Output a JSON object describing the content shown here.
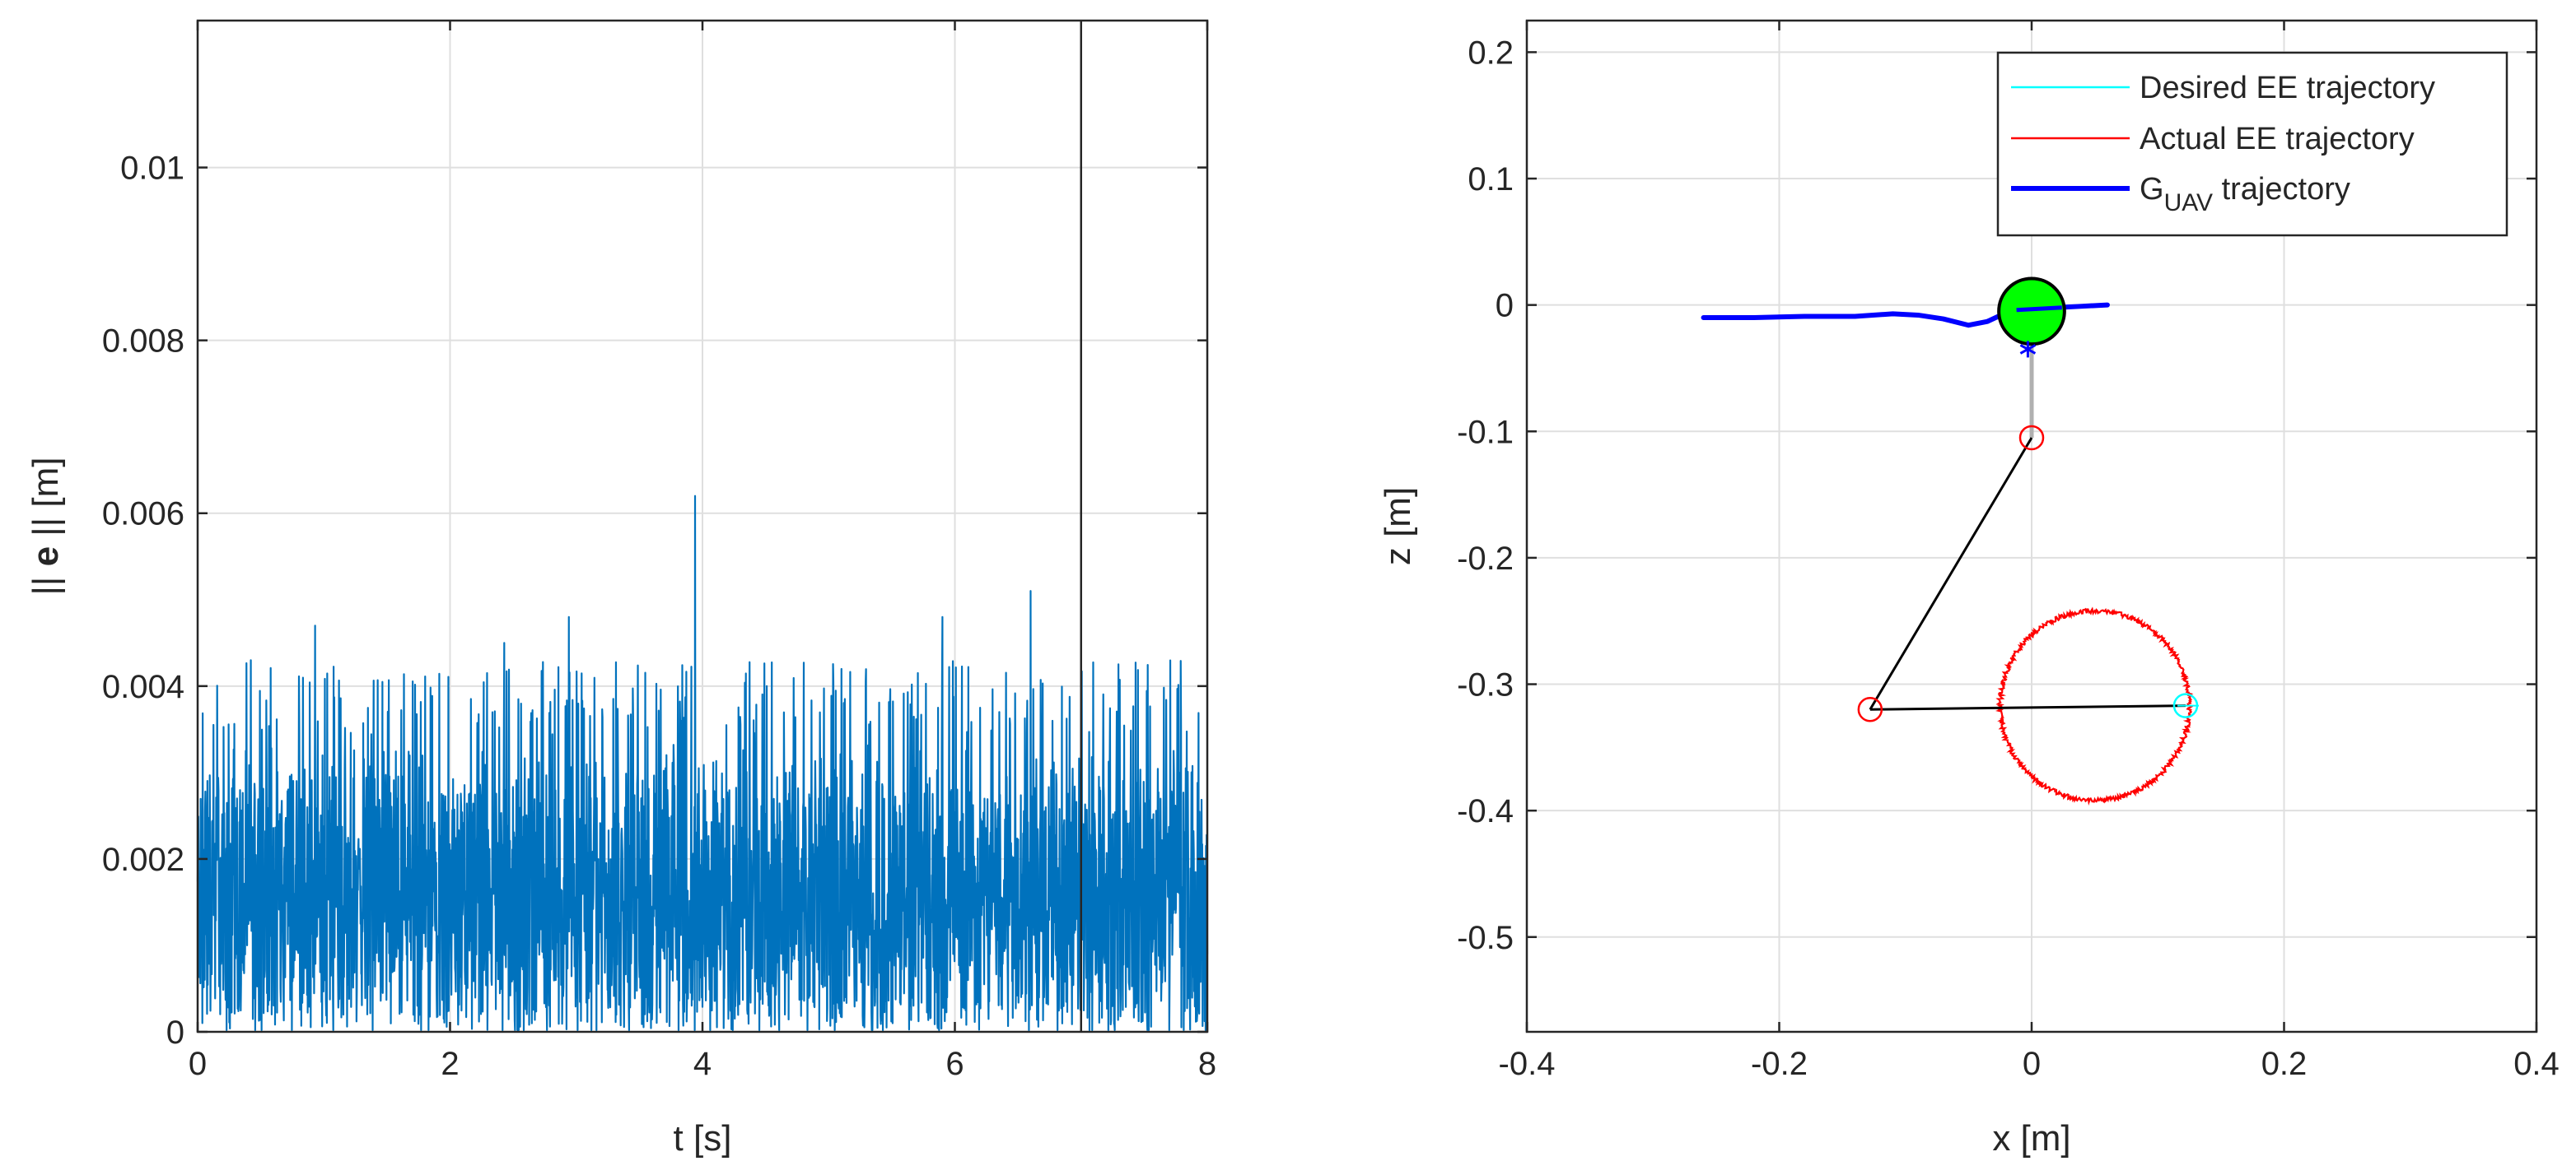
{
  "chart_data": [
    {
      "type": "line",
      "xlabel": "t [s]",
      "ylabel_parts": [
        "|| ",
        "e",
        " || [m]"
      ],
      "xlim": [
        0,
        8
      ],
      "ylim": [
        0,
        0.0117
      ],
      "xticks": [
        "0",
        "2",
        "4",
        "6",
        "8"
      ],
      "yticks": [
        "0",
        "0.002",
        "0.004",
        "0.006",
        "0.008",
        "0.01"
      ],
      "grid": true,
      "series": [
        {
          "color": "#0072BD",
          "duration_s": 8,
          "mean_error_m": 0.0016,
          "typical_max_error_m": 0.0043,
          "spikes": [
            {
              "t": 0.42,
              "e": 0.0043
            },
            {
              "t": 0.93,
              "e": 0.0047
            },
            {
              "t": 2.43,
              "e": 0.0045
            },
            {
              "t": 2.94,
              "e": 0.0048
            },
            {
              "t": 3.94,
              "e": 0.0062
            },
            {
              "t": 5.9,
              "e": 0.0048
            },
            {
              "t": 6.6,
              "e": 0.0051
            }
          ]
        }
      ],
      "vertical_line": {
        "x": 7.0,
        "color": "#262626"
      }
    },
    {
      "type": "line",
      "xlabel": "x [m]",
      "ylabel": "z [m]",
      "xlim": [
        -0.4,
        0.4
      ],
      "ylim": [
        -0.575,
        0.225
      ],
      "xticks": [
        "-0.4",
        "-0.2",
        "0",
        "0.2",
        "0.4"
      ],
      "yticks": [
        "0.2",
        "0.1",
        "0",
        "-0.1",
        "-0.2",
        "-0.3",
        "-0.4",
        "-0.5"
      ],
      "grid": true,
      "legend": {
        "position": "top-right",
        "entries": [
          {
            "label": "Desired EE trajectory",
            "color": "#00FFFF"
          },
          {
            "label": "Actual EE trajectory",
            "color": "#FF0000"
          },
          {
            "label_main": "G",
            "label_sub": "UAV",
            "label_tail": " trajectory",
            "color": "#0000FF"
          }
        ]
      },
      "series": [
        {
          "name": "Desired EE trajectory",
          "color": "#00FFFF",
          "shape": "circle",
          "center": [
            0.048,
            -0.317
          ],
          "radius": 0.075
        },
        {
          "name": "Actual EE trajectory",
          "color": "#FF0000",
          "shape": "circle",
          "center": [
            0.05,
            -0.317
          ],
          "radius": 0.075
        },
        {
          "name": "GUAV trajectory",
          "color": "#0000FF",
          "points": [
            [
              -0.26,
              -0.01
            ],
            [
              -0.22,
              -0.01
            ],
            [
              -0.18,
              -0.009
            ],
            [
              -0.14,
              -0.009
            ],
            [
              -0.11,
              -0.007
            ],
            [
              -0.09,
              -0.008
            ],
            [
              -0.07,
              -0.011
            ],
            [
              -0.05,
              -0.016
            ],
            [
              -0.035,
              -0.013
            ],
            [
              -0.02,
              -0.006
            ],
            [
              0.0,
              -0.003
            ],
            [
              0.02,
              -0.002
            ],
            [
              0.04,
              -0.001
            ],
            [
              0.06,
              0.0
            ]
          ]
        }
      ],
      "manipulator": {
        "body": {
          "x": 0.0,
          "z": -0.005,
          "radius": 0.026,
          "color": "#00FF00"
        },
        "base_marker": {
          "x": -0.003,
          "z": -0.035,
          "color": "#0000FF"
        },
        "joints": [
          [
            0.0,
            -0.105
          ],
          [
            -0.128,
            -0.32
          ],
          [
            0.122,
            -0.317
          ]
        ],
        "link_color": "#000000",
        "rod_color": "#B0B0B0",
        "joint_color": "#FF0000",
        "ee_marker_color": "#00FFFF"
      }
    }
  ]
}
